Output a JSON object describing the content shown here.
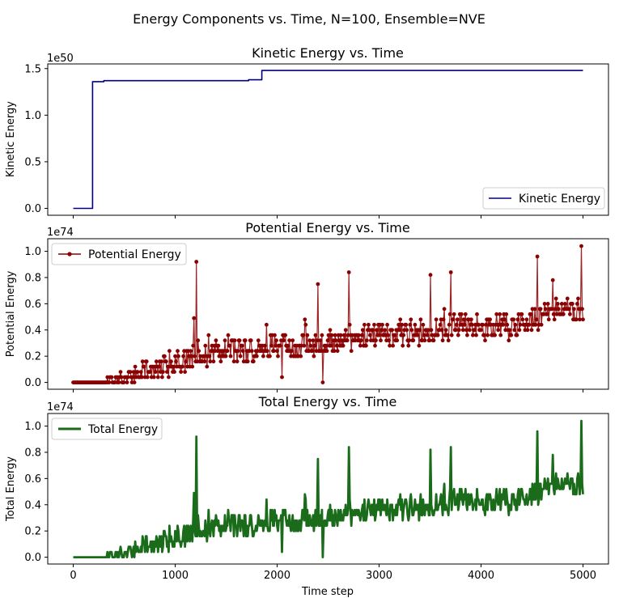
{
  "figure": {
    "suptitle": "Energy Components vs. Time, N=100, Ensemble=NVE"
  },
  "chart_data": [
    {
      "type": "line",
      "title": "Kinetic Energy vs. Time",
      "xlabel": "",
      "ylabel": "Kinetic Energy",
      "offset_label": "1e50",
      "xlim": [
        -250,
        5250
      ],
      "ylim": [
        -0.074,
        1.55
      ],
      "xticks": [
        0,
        1000,
        2000,
        3000,
        4000,
        5000
      ],
      "yticks": [
        0.0,
        0.5,
        1.0,
        1.5
      ],
      "ytick_labels": [
        "0.0",
        "0.5",
        "1.0",
        "1.5"
      ],
      "show_xtick_labels": false,
      "grid": false,
      "legend": {
        "loc": "lower-right",
        "entries": [
          "Kinetic Energy"
        ]
      },
      "series": [
        {
          "name": "Kinetic Energy",
          "color": "#00007f",
          "style": "line",
          "x": [
            0,
            190,
            190,
            300,
            300,
            1720,
            1720,
            1850,
            1850,
            5000
          ],
          "y": [
            0.0,
            0.0,
            1.36,
            1.36,
            1.37,
            1.37,
            1.38,
            1.38,
            1.48,
            1.48
          ]
        }
      ]
    },
    {
      "type": "line",
      "title": "Potential Energy vs. Time",
      "xlabel": "",
      "ylabel": "Potential Energy",
      "offset_label": "1e74",
      "xlim": [
        -250,
        5250
      ],
      "ylim": [
        -0.052,
        1.096
      ],
      "xticks": [
        0,
        1000,
        2000,
        3000,
        4000,
        5000
      ],
      "yticks": [
        0.0,
        0.2,
        0.4,
        0.6,
        0.8,
        1.0
      ],
      "ytick_labels": [
        "0.0",
        "0.2",
        "0.4",
        "0.6",
        "0.8",
        "1.0"
      ],
      "show_xtick_labels": false,
      "grid": false,
      "legend": {
        "loc": "upper-left",
        "entries": [
          "Potential Energy"
        ]
      },
      "series": [
        {
          "name": "Potential Energy",
          "color": "#8b0000",
          "style": "line-markers",
          "x_start": 0,
          "x_end": 5000,
          "trend_x": [
            0,
            400,
            700,
            1000,
            1200,
            1500,
            2000,
            2500,
            2800,
            3000,
            3500,
            3800,
            4000,
            4300,
            4600,
            5000
          ],
          "trend_y": [
            0.0,
            0.02,
            0.08,
            0.14,
            0.22,
            0.24,
            0.26,
            0.29,
            0.35,
            0.37,
            0.39,
            0.43,
            0.42,
            0.42,
            0.5,
            0.55
          ],
          "noise": 0.09,
          "spikes": [
            [
              1205,
              0.92
            ],
            [
              1180,
              0.49
            ],
            [
              2400,
              0.75
            ],
            [
              2700,
              0.84
            ],
            [
              3700,
              0.84
            ],
            [
              4550,
              0.96
            ],
            [
              4700,
              0.78
            ],
            [
              4980,
              1.04
            ],
            [
              3500,
              0.82
            ]
          ],
          "dips": [
            [
              2450,
              0.0
            ],
            [
              2050,
              0.04
            ]
          ],
          "ymin": 0.0,
          "ymax": 1.04
        }
      ]
    },
    {
      "type": "line",
      "title": "Total Energy vs. Time",
      "xlabel": "Time step",
      "ylabel": "Total Energy",
      "offset_label": "1e74",
      "xlim": [
        -250,
        5250
      ],
      "ylim": [
        -0.052,
        1.096
      ],
      "xticks": [
        0,
        1000,
        2000,
        3000,
        4000,
        5000
      ],
      "xtick_labels": [
        "0",
        "1000",
        "2000",
        "3000",
        "4000",
        "5000"
      ],
      "yticks": [
        0.0,
        0.2,
        0.4,
        0.6,
        0.8,
        1.0
      ],
      "ytick_labels": [
        "0.0",
        "0.2",
        "0.4",
        "0.6",
        "0.8",
        "1.0"
      ],
      "show_xtick_labels": true,
      "grid": false,
      "legend": {
        "loc": "upper-left",
        "entries": [
          "Total Energy"
        ]
      },
      "series": [
        {
          "name": "Total Energy",
          "color": "#1a6b1a",
          "style": "thick-line",
          "same_as": "Potential Energy"
        }
      ]
    }
  ]
}
